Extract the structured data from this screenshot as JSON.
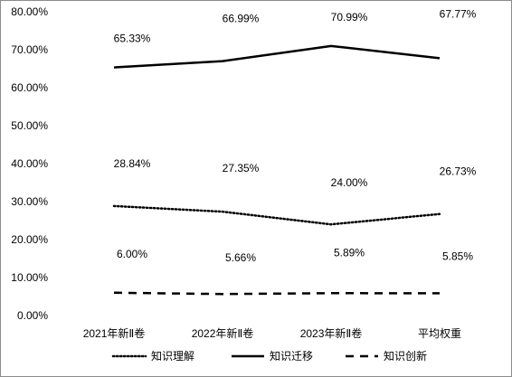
{
  "chart_data": {
    "type": "line",
    "title": "",
    "xlabel": "",
    "ylabel": "",
    "categories": [
      "2021年新Ⅱ卷",
      "2022年新Ⅱ卷",
      "2023年新Ⅱ卷",
      "平均权重"
    ],
    "ylim": [
      0,
      80
    ],
    "y_ticks": [
      {
        "value": 0,
        "label": "0.00%"
      },
      {
        "value": 10,
        "label": "10.00%"
      },
      {
        "value": 20,
        "label": "20.00%"
      },
      {
        "value": 30,
        "label": "30.00%"
      },
      {
        "value": 40,
        "label": "40.00%"
      },
      {
        "value": 50,
        "label": "50.00%"
      },
      {
        "value": 60,
        "label": "60.00%"
      },
      {
        "value": 70,
        "label": "70.00%"
      },
      {
        "value": 80,
        "label": "80.00%"
      }
    ],
    "grid": false,
    "legend_position": "bottom",
    "series": [
      {
        "name": "知识理解",
        "style": "dotted",
        "color": "#000000",
        "values": [
          28.84,
          27.35,
          24.0,
          26.73
        ],
        "labels": [
          "28.84%",
          "27.35%",
          "24.00%",
          "26.73%"
        ]
      },
      {
        "name": "知识迁移",
        "style": "solid",
        "color": "#000000",
        "values": [
          65.33,
          66.99,
          70.99,
          67.77
        ],
        "labels": [
          "65.33%",
          "66.99%",
          "70.99%",
          "67.77%"
        ]
      },
      {
        "name": "知识创新",
        "style": "dashed",
        "color": "#000000",
        "values": [
          6.0,
          5.66,
          5.89,
          5.85
        ],
        "labels": [
          "6.00%",
          "5.66%",
          "5.89%",
          "5.85%"
        ]
      }
    ]
  }
}
